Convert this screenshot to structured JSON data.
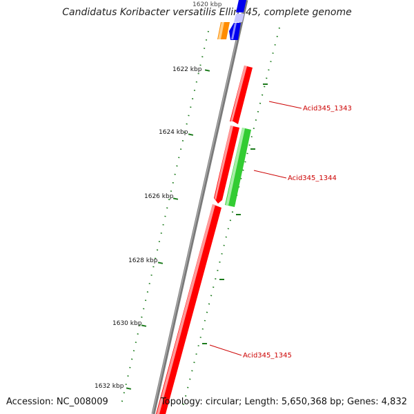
{
  "title": "Candidatus Koribacter versatilis Ellin345, complete genome",
  "accession": "Accession: NC_008009",
  "summary": "Topology: circular; Length: 5,650,368 bp; Genes: 4,832",
  "colors": {
    "backbone": "#7a7a7a",
    "cds_forward": "#ff0000",
    "cds_reverse": "#33cc33",
    "gene_orange": "#ff8c00",
    "gene_blue": "#0000ee",
    "tick": "#1a7a1a",
    "label": "#cc0000"
  },
  "ruler": [
    {
      "label": "1620 kbp"
    },
    {
      "label": "1622 kbp"
    },
    {
      "label": "1624 kbp"
    },
    {
      "label": "1626 kbp"
    },
    {
      "label": "1628 kbp"
    },
    {
      "label": "1630 kbp"
    },
    {
      "label": "1632 kbp"
    }
  ],
  "genes": [
    {
      "name": "Acid345_1343",
      "strand": "+"
    },
    {
      "name": "Acid345_1344",
      "strand": "-"
    },
    {
      "name": "Acid345_1345",
      "strand": "+"
    }
  ]
}
